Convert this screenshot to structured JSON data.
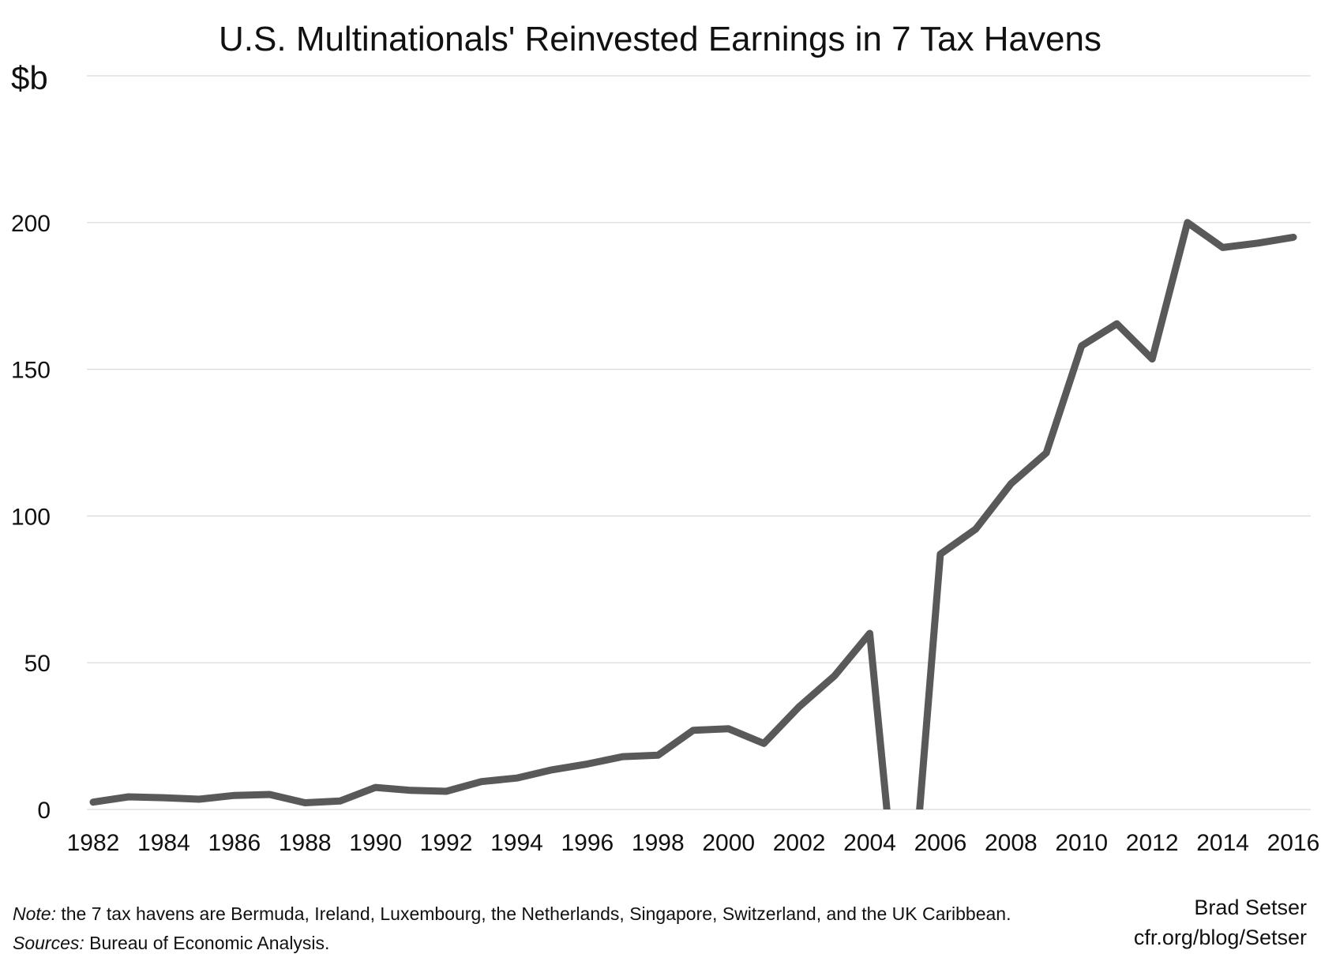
{
  "chart_data": {
    "type": "line",
    "title": "U.S. Multinationals' Reinvested Earnings in 7 Tax Havens",
    "ylabel": "$b",
    "xlabel": "",
    "ylim": [
      0,
      250
    ],
    "xlim": [
      1982,
      2016
    ],
    "yticks": [
      "0",
      "50",
      "100",
      "150",
      "200"
    ],
    "xticks": [
      "1982",
      "1984",
      "1986",
      "1988",
      "1990",
      "1992",
      "1994",
      "1996",
      "1998",
      "2000",
      "2002",
      "2004",
      "2006",
      "2008",
      "2010",
      "2012",
      "2014",
      "2016"
    ],
    "grid": true,
    "legend": "none",
    "series": [
      {
        "color": "#595959",
        "points": [
          [
            1982,
            2.5
          ],
          [
            1983,
            4.3
          ],
          [
            1984,
            4
          ],
          [
            1985,
            3.5
          ],
          [
            1986,
            4.8
          ],
          [
            1987,
            5.1
          ],
          [
            1988,
            2.3
          ],
          [
            1989,
            2.9
          ],
          [
            1990,
            7.5
          ],
          [
            1991,
            6.5
          ],
          [
            1992,
            6.2
          ],
          [
            1993,
            9.5
          ],
          [
            1994,
            10.7
          ],
          [
            1995,
            13.5
          ],
          [
            1996,
            15.5
          ],
          [
            1997,
            18
          ],
          [
            1998,
            18.5
          ],
          [
            1999,
            27
          ],
          [
            2000,
            27.5
          ],
          [
            2001,
            22.5
          ],
          [
            2002,
            35
          ],
          [
            2003,
            45.5
          ],
          [
            2004,
            60
          ],
          [
            2004.5,
            -2
          ],
          [
            2005.4,
            -2
          ],
          [
            2006,
            87
          ],
          [
            2007,
            95.5
          ],
          [
            2008,
            111
          ],
          [
            2009,
            121.5
          ],
          [
            2010,
            158
          ],
          [
            2011,
            165.5
          ],
          [
            2012,
            153.5
          ],
          [
            2013,
            200
          ],
          [
            2014,
            191.5
          ],
          [
            2015,
            193
          ],
          [
            2016,
            195
          ]
        ]
      }
    ]
  },
  "notes": {
    "note_label": "Note:",
    "note_text": " the 7 tax havens are Bermuda, Ireland, Luxembourg, the Netherlands, Singapore, Switzerland, and the UK Caribbean.",
    "sources_label": "Sources:",
    "sources_text": " Bureau of Economic Analysis."
  },
  "credit": {
    "author": "Brad Setser",
    "url": "cfr.org/blog/Setser"
  }
}
